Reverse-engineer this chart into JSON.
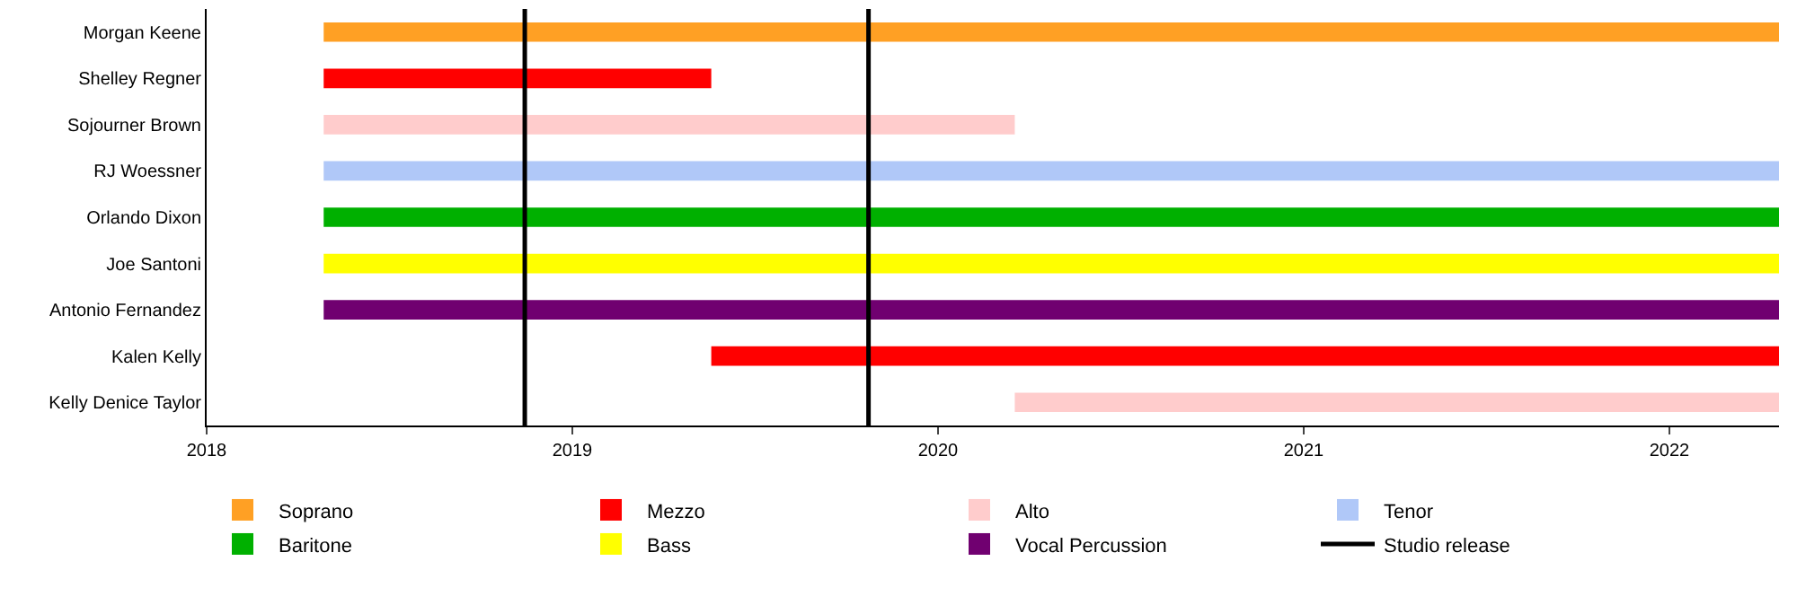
{
  "chart_data": {
    "type": "bar",
    "orientation": "horizontal",
    "categories": [
      "Morgan Keene",
      "Shelley Regner",
      "Sojourner Brown",
      "RJ Woessner",
      "Orlando Dixon",
      "Joe Santoni",
      "Antonio Fernandez",
      "Kalen Kelly",
      "Kelly Denice Taylor"
    ],
    "series": [
      {
        "name": "Soprano",
        "color": "#ffa024",
        "base": [
          2018.32,
          null,
          null,
          null,
          null,
          null,
          null,
          null,
          null
        ],
        "values": [
          3.98,
          null,
          null,
          null,
          null,
          null,
          null,
          null,
          null
        ]
      },
      {
        "name": "Mezzo",
        "color": "#ff0000",
        "base": [
          null,
          2018.32,
          null,
          null,
          null,
          null,
          null,
          2019.38,
          null
        ],
        "values": [
          null,
          1.06,
          null,
          null,
          null,
          null,
          null,
          2.92,
          null
        ]
      },
      {
        "name": "Alto",
        "color": "#ffcccc",
        "base": [
          null,
          null,
          2018.32,
          null,
          null,
          null,
          null,
          null,
          2020.21
        ],
        "values": [
          null,
          null,
          1.89,
          null,
          null,
          null,
          null,
          null,
          2.09
        ]
      },
      {
        "name": "Tenor",
        "color": "#b0c8f8",
        "base": [
          null,
          null,
          null,
          2018.32,
          null,
          null,
          null,
          null,
          null
        ],
        "values": [
          null,
          null,
          null,
          3.98,
          null,
          null,
          null,
          null,
          null
        ]
      },
      {
        "name": "Baritone",
        "color": "#00b000",
        "base": [
          null,
          null,
          null,
          null,
          2018.32,
          null,
          null,
          null,
          null
        ],
        "values": [
          null,
          null,
          null,
          null,
          3.98,
          null,
          null,
          null,
          null
        ]
      },
      {
        "name": "Bass",
        "color": "#ffff00",
        "base": [
          null,
          null,
          null,
          null,
          null,
          2018.32,
          null,
          null,
          null
        ],
        "values": [
          null,
          null,
          null,
          null,
          null,
          3.98,
          null,
          null,
          null
        ]
      },
      {
        "name": "Vocal Percussion",
        "color": "#700070",
        "base": [
          null,
          null,
          null,
          null,
          null,
          null,
          2018.32,
          null,
          null
        ],
        "values": [
          null,
          null,
          null,
          null,
          null,
          null,
          3.98,
          null,
          null
        ]
      }
    ],
    "ref_lines": [
      {
        "axis": "x",
        "value": 2018.87,
        "label": "Studio release",
        "color": "#000000"
      },
      {
        "axis": "x",
        "value": 2019.81,
        "color": "#000000"
      }
    ],
    "xlim": [
      2018,
      2022.3
    ],
    "xticks": [
      2018,
      2019,
      2020,
      2021,
      2022
    ],
    "legend": "bottom"
  }
}
